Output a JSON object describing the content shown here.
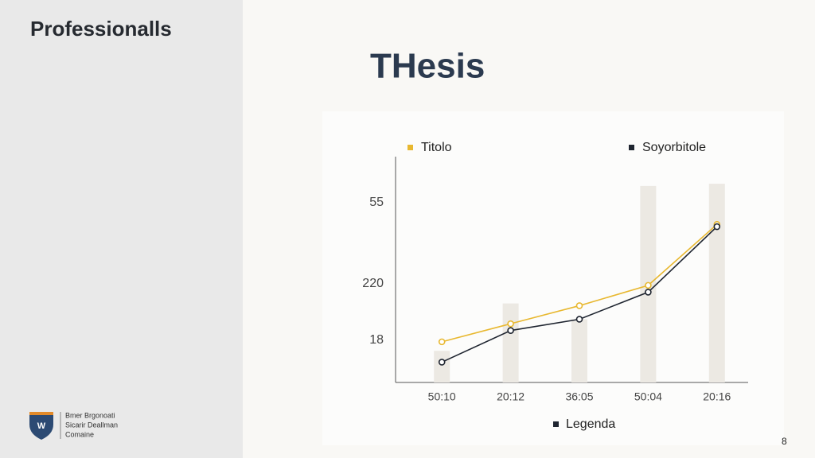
{
  "sidebar": {
    "brand": "Professionalls",
    "footer_lines": [
      "Bmer Brgonoati",
      "Sicarir Deallman",
      "Comaine"
    ]
  },
  "slide": {
    "title": "THesis",
    "page_number": "8"
  },
  "chart_data": {
    "type": "line",
    "categories": [
      "50:10",
      "20:12",
      "36:05",
      "50:04",
      "20:16"
    ],
    "ylim": [
      0,
      100
    ],
    "y_axis_labels": [
      "55",
      "220",
      "18"
    ],
    "bars": {
      "color": "#ece9e3",
      "values": [
        14,
        35,
        28,
        87,
        88
      ]
    },
    "series": [
      {
        "name": "Titolo",
        "color": "#e8b830",
        "values": [
          18,
          26,
          34,
          43,
          70
        ]
      },
      {
        "name": "Soyorbitole",
        "color": "#1f2530",
        "values": [
          9,
          23,
          28,
          40,
          69
        ]
      }
    ],
    "legend_title": "Legenda"
  }
}
